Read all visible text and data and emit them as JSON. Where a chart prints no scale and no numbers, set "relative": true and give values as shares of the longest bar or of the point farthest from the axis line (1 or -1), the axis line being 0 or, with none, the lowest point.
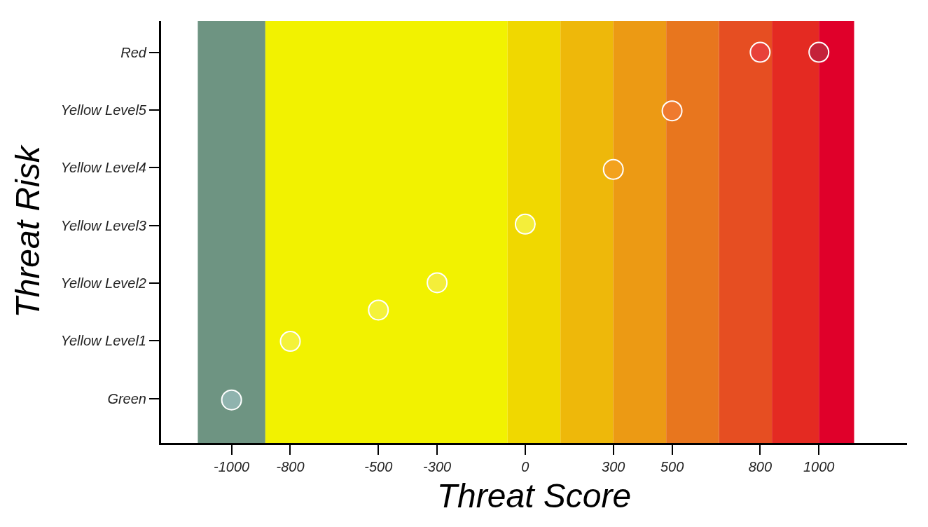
{
  "chart_data": {
    "type": "scatter",
    "xlabel": "Threat Score",
    "ylabel": "Threat Risk",
    "x": [
      -1000,
      -800,
      -500,
      -300,
      0,
      300,
      500,
      800,
      1000
    ],
    "values": [
      0.11,
      0.26,
      0.34,
      0.41,
      0.56,
      0.7,
      0.85,
      1,
      1
    ],
    "relative": true,
    "y_categories": [
      "Red",
      "Yellow Level5",
      "Yellow Level4",
      "Yellow Level3",
      "Yellow Level2",
      "Yellow Level1",
      "Green"
    ],
    "colors": [
      "#8fb3ae",
      "#f4f23a",
      "#f4f23a",
      "#f4ee3a",
      "#f4ee3a",
      "#f3a21e",
      "#ef7a2e",
      "#e8413a",
      "#c4223a"
    ],
    "marker": "circle",
    "xlim": [
      -1240,
      1300
    ],
    "xticks": [
      -1000,
      -800,
      -500,
      -300,
      0,
      300,
      500,
      800,
      1000
    ],
    "bands": [
      {
        "axis": "x",
        "from": -1115,
        "to": -885,
        "color": "#6e9482"
      },
      {
        "axis": "x",
        "from": -885,
        "to": -60,
        "color": "#f2f200"
      },
      {
        "axis": "x",
        "from": -60,
        "to": 120,
        "color": "#f0d800"
      },
      {
        "axis": "x",
        "from": 120,
        "to": 300,
        "color": "#eeb80a"
      },
      {
        "axis": "x",
        "from": 300,
        "to": 480,
        "color": "#ec9a14"
      },
      {
        "axis": "x",
        "from": 480,
        "to": 660,
        "color": "#e8761e"
      },
      {
        "axis": "x",
        "from": 660,
        "to": 840,
        "color": "#e64e22"
      },
      {
        "axis": "x",
        "from": 840,
        "to": 1000,
        "color": "#e42a22"
      },
      {
        "axis": "x",
        "from": 1000,
        "to": 1120,
        "color": "#e0002a"
      }
    ],
    "grid": false
  }
}
